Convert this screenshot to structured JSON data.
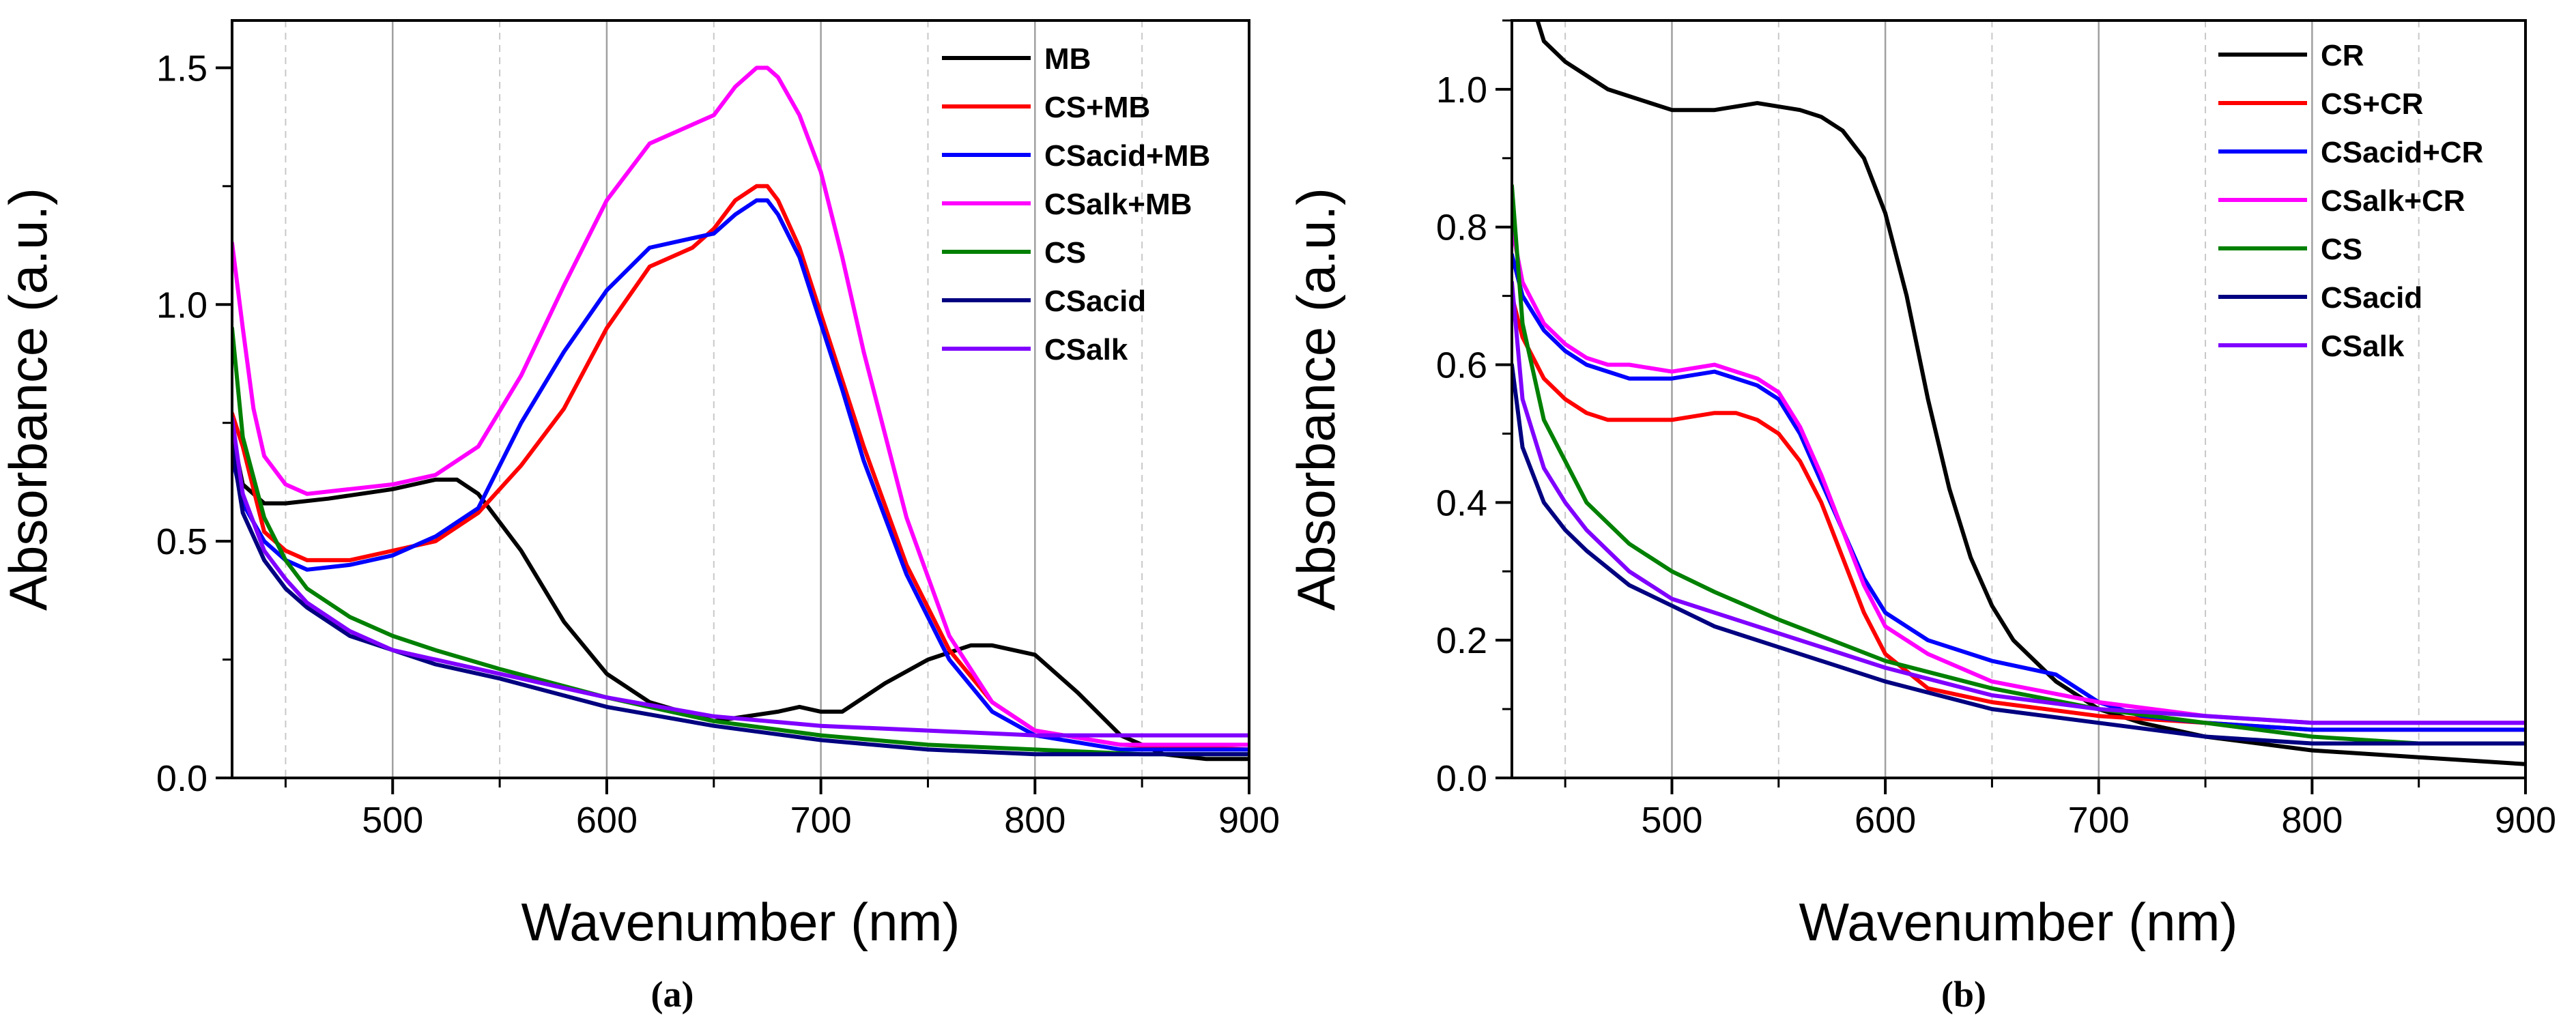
{
  "chart_data": [
    {
      "type": "line",
      "caption": "(a)",
      "xlabel": "Wavenumber (nm)",
      "ylabel": "Absorbance (a.u.)",
      "xlim": [
        425,
        900
      ],
      "ylim": [
        0,
        1.6
      ],
      "xticks": [
        500,
        600,
        700,
        800,
        900
      ],
      "yticks": [
        0.0,
        0.5,
        1.0,
        1.5
      ],
      "ytick_labels": [
        "0.0",
        "0.5",
        "1.0",
        "1.5"
      ],
      "grid_major": [
        500,
        600,
        700,
        800
      ],
      "grid_minor": [
        450,
        550,
        650,
        750,
        850
      ],
      "legend_position": "top-right",
      "series": [
        {
          "name": "MB",
          "color": "#000000",
          "x": [
            425,
            430,
            440,
            450,
            470,
            500,
            520,
            530,
            540,
            560,
            580,
            600,
            620,
            650,
            680,
            690,
            700,
            710,
            730,
            750,
            770,
            780,
            800,
            820,
            840,
            860,
            880,
            900
          ],
          "y": [
            0.73,
            0.62,
            0.58,
            0.58,
            0.59,
            0.61,
            0.63,
            0.63,
            0.6,
            0.48,
            0.33,
            0.22,
            0.16,
            0.12,
            0.14,
            0.15,
            0.14,
            0.14,
            0.2,
            0.25,
            0.28,
            0.28,
            0.26,
            0.18,
            0.09,
            0.05,
            0.04,
            0.04
          ]
        },
        {
          "name": "CS+MB",
          "color": "#ff0000",
          "x": [
            425,
            430,
            440,
            450,
            460,
            480,
            500,
            520,
            540,
            560,
            580,
            600,
            620,
            640,
            650,
            660,
            670,
            675,
            680,
            690,
            700,
            710,
            720,
            740,
            760,
            780,
            800,
            840,
            900
          ],
          "y": [
            0.77,
            0.7,
            0.52,
            0.48,
            0.46,
            0.46,
            0.48,
            0.5,
            0.56,
            0.66,
            0.78,
            0.95,
            1.08,
            1.12,
            1.16,
            1.22,
            1.25,
            1.25,
            1.22,
            1.12,
            0.98,
            0.84,
            0.7,
            0.45,
            0.27,
            0.16,
            0.1,
            0.07,
            0.06
          ]
        },
        {
          "name": "CSacid+MB",
          "color": "#0000ff",
          "x": [
            425,
            430,
            440,
            450,
            460,
            480,
            500,
            520,
            540,
            560,
            580,
            600,
            620,
            640,
            650,
            660,
            670,
            675,
            680,
            690,
            700,
            710,
            720,
            740,
            760,
            780,
            800,
            840,
            900
          ],
          "y": [
            0.68,
            0.58,
            0.5,
            0.46,
            0.44,
            0.45,
            0.47,
            0.51,
            0.57,
            0.75,
            0.9,
            1.03,
            1.12,
            1.14,
            1.15,
            1.19,
            1.22,
            1.22,
            1.19,
            1.1,
            0.96,
            0.82,
            0.67,
            0.43,
            0.25,
            0.14,
            0.09,
            0.06,
            0.06
          ]
        },
        {
          "name": "CSalk+MB",
          "color": "#ff00ff",
          "x": [
            425,
            430,
            435,
            440,
            450,
            460,
            480,
            500,
            520,
            540,
            560,
            580,
            600,
            620,
            640,
            650,
            660,
            670,
            675,
            680,
            690,
            700,
            710,
            720,
            740,
            760,
            780,
            800,
            840,
            900
          ],
          "y": [
            1.13,
            0.95,
            0.78,
            0.68,
            0.62,
            0.6,
            0.61,
            0.62,
            0.64,
            0.7,
            0.85,
            1.04,
            1.22,
            1.34,
            1.38,
            1.4,
            1.46,
            1.5,
            1.5,
            1.48,
            1.4,
            1.28,
            1.1,
            0.9,
            0.55,
            0.3,
            0.16,
            0.1,
            0.07,
            0.07
          ]
        },
        {
          "name": "CS",
          "color": "#008000",
          "x": [
            425,
            430,
            440,
            450,
            460,
            480,
            500,
            520,
            550,
            600,
            650,
            700,
            750,
            800,
            850,
            900
          ],
          "y": [
            0.95,
            0.72,
            0.55,
            0.46,
            0.4,
            0.34,
            0.3,
            0.27,
            0.23,
            0.17,
            0.12,
            0.09,
            0.07,
            0.06,
            0.05,
            0.05
          ]
        },
        {
          "name": "CSacid",
          "color": "#000080",
          "x": [
            425,
            430,
            440,
            450,
            460,
            480,
            500,
            520,
            550,
            600,
            650,
            700,
            750,
            800,
            850,
            900
          ],
          "y": [
            0.7,
            0.56,
            0.46,
            0.4,
            0.36,
            0.3,
            0.27,
            0.24,
            0.21,
            0.15,
            0.11,
            0.08,
            0.06,
            0.05,
            0.05,
            0.05
          ]
        },
        {
          "name": "CSalk",
          "color": "#8000ff",
          "x": [
            425,
            430,
            440,
            450,
            460,
            480,
            500,
            520,
            550,
            600,
            650,
            700,
            750,
            800,
            850,
            900
          ],
          "y": [
            0.76,
            0.6,
            0.48,
            0.42,
            0.37,
            0.31,
            0.27,
            0.25,
            0.22,
            0.17,
            0.13,
            0.11,
            0.1,
            0.09,
            0.09,
            0.09
          ]
        }
      ]
    },
    {
      "type": "line",
      "caption": "(b)",
      "xlabel": "Wavenumber (nm)",
      "ylabel": "Absorbance (a.u.)",
      "xlim": [
        425,
        900
      ],
      "ylim": [
        0,
        1.1
      ],
      "xticks": [
        500,
        600,
        700,
        800,
        900
      ],
      "yticks": [
        0.0,
        0.2,
        0.4,
        0.6,
        0.8,
        1.0
      ],
      "ytick_labels": [
        "0.0",
        "0.2",
        "0.4",
        "0.6",
        "0.8",
        "1.0"
      ],
      "grid_major": [
        500,
        600,
        700,
        800
      ],
      "grid_minor": [
        450,
        550,
        650,
        750,
        850
      ],
      "legend_position": "top-right",
      "series": [
        {
          "name": "CR",
          "color": "#000000",
          "x": [
            437,
            440,
            450,
            460,
            470,
            480,
            500,
            520,
            540,
            560,
            570,
            580,
            590,
            600,
            610,
            620,
            630,
            640,
            650,
            660,
            680,
            700,
            720,
            750,
            800,
            850,
            900
          ],
          "y": [
            1.1,
            1.07,
            1.04,
            1.02,
            1.0,
            0.99,
            0.97,
            0.97,
            0.98,
            0.97,
            0.96,
            0.94,
            0.9,
            0.82,
            0.7,
            0.55,
            0.42,
            0.32,
            0.25,
            0.2,
            0.14,
            0.1,
            0.08,
            0.06,
            0.04,
            0.03,
            0.02
          ]
        },
        {
          "name": "CS+CR",
          "color": "#ff0000",
          "x": [
            425,
            430,
            440,
            450,
            460,
            470,
            480,
            500,
            520,
            530,
            540,
            550,
            560,
            570,
            580,
            590,
            600,
            620,
            650,
            700,
            750,
            800,
            850,
            900
          ],
          "y": [
            0.7,
            0.64,
            0.58,
            0.55,
            0.53,
            0.52,
            0.52,
            0.52,
            0.53,
            0.53,
            0.52,
            0.5,
            0.46,
            0.4,
            0.32,
            0.24,
            0.18,
            0.13,
            0.11,
            0.09,
            0.08,
            0.07,
            0.07,
            0.07
          ]
        },
        {
          "name": "CSacid+CR",
          "color": "#0000ff",
          "x": [
            425,
            430,
            440,
            450,
            460,
            470,
            480,
            500,
            520,
            530,
            540,
            550,
            560,
            570,
            580,
            590,
            600,
            620,
            650,
            680,
            700,
            720,
            750,
            800,
            850,
            900
          ],
          "y": [
            0.76,
            0.7,
            0.65,
            0.62,
            0.6,
            0.59,
            0.58,
            0.58,
            0.59,
            0.58,
            0.57,
            0.55,
            0.5,
            0.43,
            0.36,
            0.29,
            0.24,
            0.2,
            0.17,
            0.15,
            0.11,
            0.09,
            0.08,
            0.07,
            0.07,
            0.07
          ]
        },
        {
          "name": "CSalk+CR",
          "color": "#ff00ff",
          "x": [
            425,
            430,
            440,
            450,
            460,
            470,
            480,
            500,
            520,
            530,
            540,
            550,
            560,
            570,
            580,
            590,
            600,
            620,
            650,
            700,
            750,
            800,
            850,
            900
          ],
          "y": [
            0.8,
            0.72,
            0.66,
            0.63,
            0.61,
            0.6,
            0.6,
            0.59,
            0.6,
            0.59,
            0.58,
            0.56,
            0.51,
            0.44,
            0.36,
            0.28,
            0.22,
            0.18,
            0.14,
            0.11,
            0.09,
            0.08,
            0.08,
            0.08
          ]
        },
        {
          "name": "CS",
          "color": "#008000",
          "x": [
            425,
            430,
            440,
            450,
            460,
            480,
            500,
            520,
            550,
            600,
            650,
            700,
            750,
            800,
            850,
            900
          ],
          "y": [
            0.86,
            0.66,
            0.52,
            0.46,
            0.4,
            0.34,
            0.3,
            0.27,
            0.23,
            0.17,
            0.13,
            0.1,
            0.08,
            0.06,
            0.05,
            0.05
          ]
        },
        {
          "name": "CSacid",
          "color": "#000080",
          "x": [
            425,
            430,
            440,
            450,
            460,
            480,
            500,
            520,
            550,
            600,
            650,
            700,
            750,
            800,
            850,
            900
          ],
          "y": [
            0.6,
            0.48,
            0.4,
            0.36,
            0.33,
            0.28,
            0.25,
            0.22,
            0.19,
            0.14,
            0.1,
            0.08,
            0.06,
            0.05,
            0.05,
            0.05
          ]
        },
        {
          "name": "CSalk",
          "color": "#8000ff",
          "x": [
            425,
            430,
            440,
            450,
            460,
            480,
            500,
            520,
            550,
            600,
            650,
            700,
            750,
            800,
            850,
            900
          ],
          "y": [
            0.72,
            0.55,
            0.45,
            0.4,
            0.36,
            0.3,
            0.26,
            0.24,
            0.21,
            0.16,
            0.12,
            0.1,
            0.09,
            0.08,
            0.08,
            0.08
          ]
        }
      ]
    }
  ]
}
